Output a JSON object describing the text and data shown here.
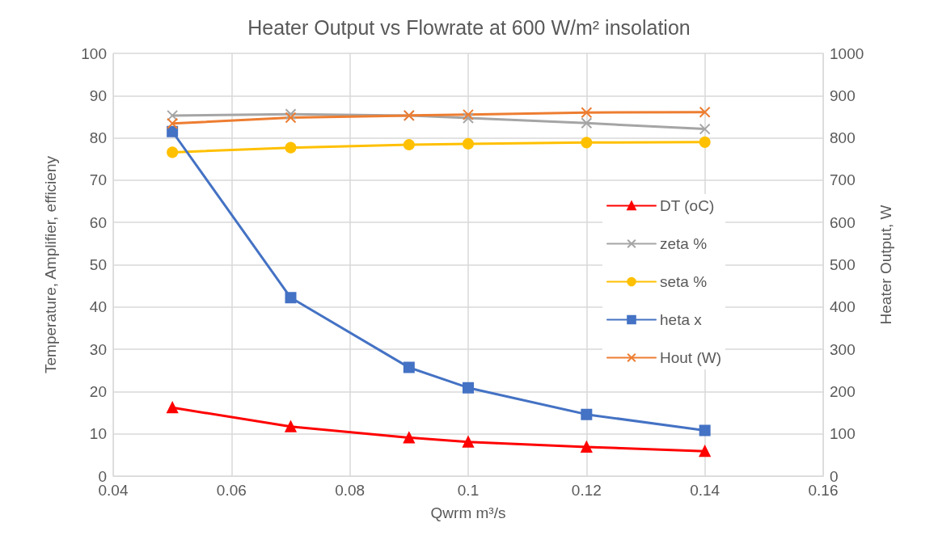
{
  "chart_data": {
    "type": "line",
    "title": "Heater Output vs Flowrate at 600 W/m² insolation",
    "xlabel": "Qwrm m³/s",
    "ylabel": "Temperature, Amplifier, efficieny",
    "y2label": "Heater Output, W",
    "x": [
      0.05,
      0.07,
      0.09,
      0.1,
      0.12,
      0.14
    ],
    "xlim": [
      0.04,
      0.16
    ],
    "xticks": [
      0.04,
      0.06,
      0.08,
      0.1,
      0.12,
      0.14,
      0.16
    ],
    "ylim": [
      0,
      100
    ],
    "yticks": [
      0,
      10,
      20,
      30,
      40,
      50,
      60,
      70,
      80,
      90,
      100
    ],
    "y2lim": [
      0,
      1000
    ],
    "y2ticks": [
      0,
      100,
      200,
      300,
      400,
      500,
      600,
      700,
      800,
      900,
      1000
    ],
    "grid": true,
    "legend": "right",
    "series": [
      {
        "name": "DT (oC)",
        "color": "#ff0000",
        "marker": "triangle",
        "values": [
          16.2,
          11.7,
          9.1,
          8.1,
          6.9,
          5.9
        ]
      },
      {
        "name": "zeta %",
        "color": "#a5a5a5",
        "marker": "cross",
        "values": [
          85.3,
          85.6,
          85.3,
          84.7,
          83.5,
          82.1
        ]
      },
      {
        "name": "seta %",
        "color": "#ffc000",
        "marker": "circle",
        "values": [
          76.6,
          77.7,
          78.4,
          78.6,
          78.9,
          79.0
        ]
      },
      {
        "name": "heta x",
        "color": "#4472c4",
        "marker": "square",
        "values": [
          81.5,
          42.2,
          25.7,
          20.9,
          14.6,
          10.8
        ]
      },
      {
        "name": "Hout (W)",
        "color": "#ed7d31",
        "marker": "cross",
        "axis": "y2",
        "values": [
          834,
          848,
          853,
          855,
          860,
          861
        ]
      }
    ]
  }
}
